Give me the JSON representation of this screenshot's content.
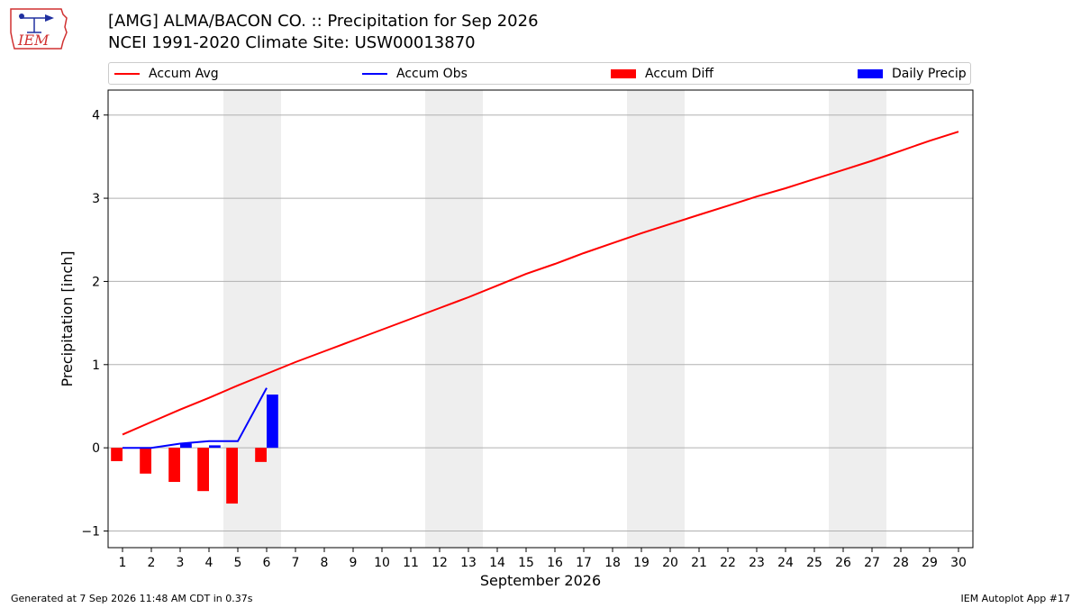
{
  "header": {
    "title_line1": "[AMG] ALMA/BACON CO. :: Precipitation for Sep 2026",
    "title_line2": "NCEI 1991-2020 Climate Site: USW00013870",
    "logo_text": "IEM"
  },
  "legend": [
    {
      "label": "Accum Avg",
      "kind": "line",
      "color": "#ff0000"
    },
    {
      "label": "Accum Obs",
      "kind": "line",
      "color": "#0000ff"
    },
    {
      "label": "Accum Diff",
      "kind": "bar",
      "color": "#ff0000"
    },
    {
      "label": "Daily Precip",
      "kind": "bar",
      "color": "#0000ff"
    }
  ],
  "footer": {
    "left": "Generated at 7 Sep 2026 11:48 AM CDT in 0.37s",
    "right": "IEM Autoplot App #17"
  },
  "chart_data": {
    "type": "line",
    "title": "[AMG] ALMA/BACON CO. :: Precipitation for Sep 2026",
    "xlabel": "September 2026",
    "ylabel": "Precipitation [inch]",
    "xlim": [
      0.5,
      30.5
    ],
    "ylim": [
      -1.2,
      4.3
    ],
    "x_ticks": [
      1,
      2,
      3,
      4,
      5,
      6,
      7,
      8,
      9,
      10,
      11,
      12,
      13,
      14,
      15,
      16,
      17,
      18,
      19,
      20,
      21,
      22,
      23,
      24,
      25,
      26,
      27,
      28,
      29,
      30
    ],
    "y_ticks": [
      -1,
      0,
      1,
      2,
      3,
      4
    ],
    "grid": "horizontal",
    "legend_position": "top",
    "weekend_shading": [
      [
        4.5,
        6.5
      ],
      [
        11.5,
        13.5
      ],
      [
        18.5,
        20.5
      ],
      [
        25.5,
        27.5
      ]
    ],
    "series": [
      {
        "name": "Accum Avg",
        "type": "line",
        "color": "#ff0000",
        "x": [
          1,
          2,
          3,
          4,
          5,
          6,
          7,
          8,
          9,
          10,
          11,
          12,
          13,
          14,
          15,
          16,
          17,
          18,
          19,
          20,
          21,
          22,
          23,
          24,
          25,
          26,
          27,
          28,
          29,
          30
        ],
        "values": [
          0.16,
          0.31,
          0.46,
          0.6,
          0.75,
          0.89,
          1.03,
          1.16,
          1.29,
          1.42,
          1.55,
          1.68,
          1.81,
          1.95,
          2.09,
          2.21,
          2.34,
          2.46,
          2.58,
          2.69,
          2.8,
          2.91,
          3.02,
          3.12,
          3.23,
          3.34,
          3.45,
          3.57,
          3.69,
          3.8
        ]
      },
      {
        "name": "Accum Obs",
        "type": "line",
        "color": "#0000ff",
        "x": [
          1,
          2,
          3,
          4,
          5,
          6
        ],
        "values": [
          0.0,
          0.0,
          0.05,
          0.08,
          0.08,
          0.72
        ]
      },
      {
        "name": "Accum Diff",
        "type": "bar",
        "color": "#ff0000",
        "offset": -0.2,
        "x": [
          1,
          2,
          3,
          4,
          5,
          6
        ],
        "values": [
          -0.16,
          -0.31,
          -0.41,
          -0.52,
          -0.67,
          -0.17
        ]
      },
      {
        "name": "Daily Precip",
        "type": "bar",
        "color": "#0000ff",
        "offset": 0.2,
        "x": [
          1,
          2,
          3,
          4,
          5,
          6
        ],
        "values": [
          0.0,
          0.0,
          0.05,
          0.03,
          0.0,
          0.64
        ]
      }
    ]
  }
}
